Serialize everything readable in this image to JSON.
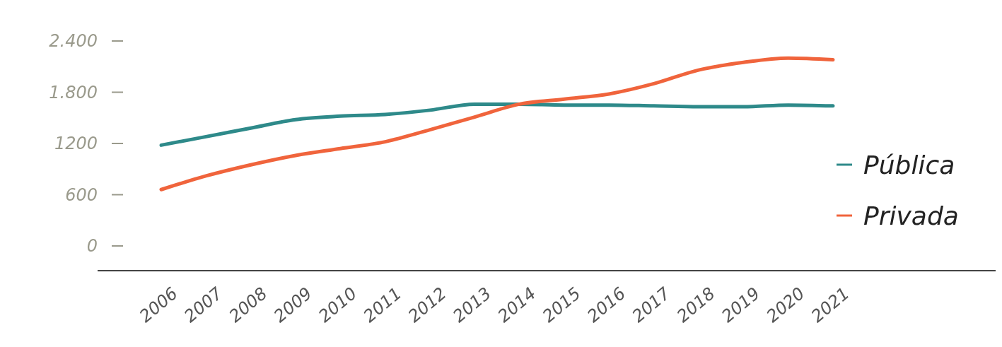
{
  "chart_data": {
    "type": "line",
    "categories": [
      "2006",
      "2007",
      "2008",
      "2009",
      "2010",
      "2011",
      "2012",
      "2013",
      "2014",
      "2015",
      "2016",
      "2017",
      "2018",
      "2019",
      "2020",
      "2021"
    ],
    "series": [
      {
        "name": "Pública",
        "color": "#2e8a8a",
        "values": [
          1180,
          1280,
          1380,
          1480,
          1520,
          1540,
          1590,
          1660,
          1660,
          1650,
          1650,
          1640,
          1630,
          1630,
          1650,
          1640
        ]
      },
      {
        "name": "Privada",
        "color": "#f0643c",
        "values": [
          660,
          820,
          950,
          1060,
          1140,
          1220,
          1360,
          1510,
          1660,
          1720,
          1780,
          1900,
          2060,
          2150,
          2200,
          2180
        ]
      }
    ],
    "ylim": [
      0,
      2400
    ],
    "yticks": [
      {
        "value": 0,
        "label": "0"
      },
      {
        "value": 600,
        "label": "600"
      },
      {
        "value": 1200,
        "label": "1200"
      },
      {
        "value": 1800,
        "label": "1.800"
      },
      {
        "value": 2400,
        "label": "2.400"
      }
    ],
    "grid": false,
    "legend": "right",
    "marker": "none",
    "line_style": "solid"
  }
}
